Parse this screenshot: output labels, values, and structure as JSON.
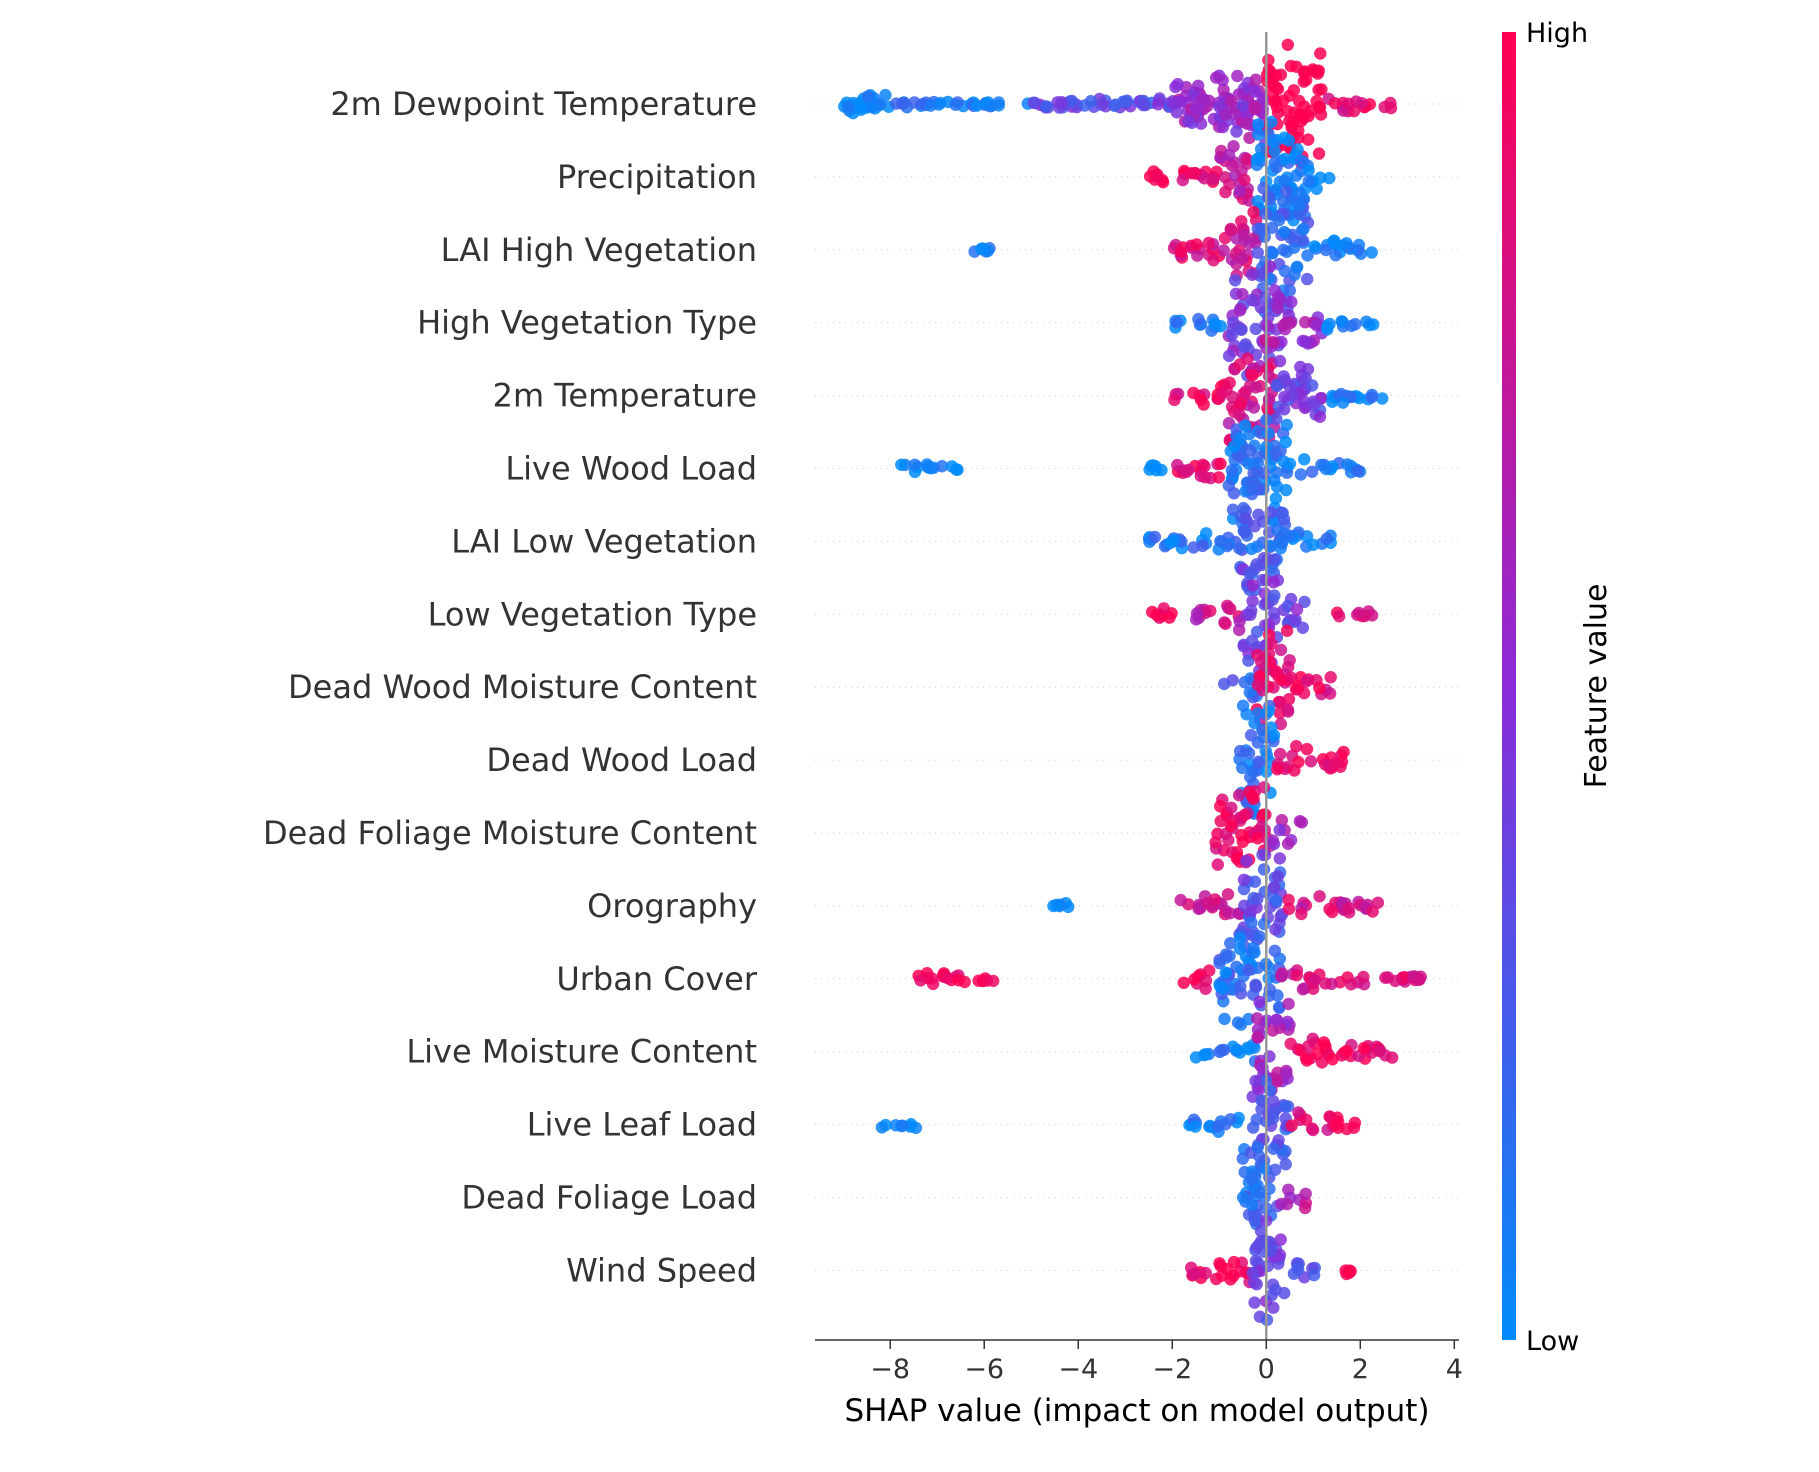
{
  "chart_data": {
    "type": "scatter",
    "subtype": "shap-beeswarm",
    "title": "",
    "xlabel": "SHAP value (impact on model output)",
    "ylabel": "",
    "xlim": [
      -9.6,
      4.1
    ],
    "xticks": [
      -8,
      -6,
      -4,
      -2,
      0,
      2,
      4
    ],
    "xtick_labels": [
      "−8",
      "−6",
      "−4",
      "−2",
      "0",
      "2",
      "4"
    ],
    "zero_line": true,
    "grid": false,
    "colorbar": {
      "title": "Feature value",
      "high_label": "High",
      "low_label": "Low",
      "low_color": "#008bfb",
      "high_color": "#ff0051"
    },
    "features": [
      {
        "name": "2m Dewpoint Temperature",
        "min": -9.1,
        "max": 2.7,
        "peak": 0.6,
        "segments": [
          [
            -9.1,
            -8.0,
            0.0,
            0.9
          ],
          [
            -8.0,
            -5.0,
            0.08,
            0.35
          ],
          [
            -5.0,
            -2.0,
            0.35,
            0.55
          ],
          [
            -2.0,
            0.0,
            0.55,
            1.8
          ],
          [
            0.0,
            1.2,
            1.8,
            2.2
          ],
          [
            1.2,
            2.7,
            0.9,
            0.4
          ]
        ]
      },
      {
        "name": "Precipitation",
        "min": -2.6,
        "max": 1.4,
        "peak": 0.1,
        "segments": [
          [
            -2.6,
            -1.0,
            0.95,
            0.5
          ],
          [
            -1.0,
            -0.3,
            0.75,
            1.3
          ],
          [
            -0.3,
            0.8,
            0.05,
            2.2
          ],
          [
            0.8,
            1.4,
            0.0,
            0.6
          ]
        ]
      },
      {
        "name": "LAI High Vegetation",
        "min": -2.0,
        "max": 2.3,
        "peak": 0.1,
        "segments": [
          [
            -6.5,
            -5.8,
            0.0,
            0.4
          ],
          [
            -2.0,
            -0.8,
            0.85,
            0.6
          ],
          [
            -0.8,
            -0.2,
            0.8,
            1.5
          ],
          [
            -0.2,
            0.9,
            0.2,
            2.2
          ],
          [
            0.9,
            2.3,
            0.0,
            0.5
          ]
        ]
      },
      {
        "name": "High Vegetation Type",
        "min": -2.0,
        "max": 2.3,
        "peak": 0.0,
        "segments": [
          [
            -2.0,
            -0.8,
            0.05,
            0.4
          ],
          [
            -0.8,
            0.3,
            0.45,
            2.0
          ],
          [
            0.3,
            1.2,
            0.55,
            0.9
          ],
          [
            1.2,
            2.3,
            0.1,
            0.4
          ]
        ]
      },
      {
        "name": "2m Temperature",
        "min": -2.0,
        "max": 2.5,
        "peak": 0.0,
        "segments": [
          [
            -2.0,
            -0.8,
            0.9,
            0.5
          ],
          [
            -0.8,
            0.2,
            0.8,
            2.0
          ],
          [
            0.2,
            1.2,
            0.4,
            1.4
          ],
          [
            1.2,
            2.5,
            0.05,
            0.5
          ]
        ]
      },
      {
        "name": "Live Wood Load",
        "min": -2.1,
        "max": 2.0,
        "peak": 0.0,
        "segments": [
          [
            -7.8,
            -6.5,
            0.0,
            0.4
          ],
          [
            -2.5,
            -2.2,
            0.0,
            0.3
          ],
          [
            -2.0,
            -0.8,
            0.9,
            0.5
          ],
          [
            -0.8,
            0.5,
            0.1,
            2.0
          ],
          [
            0.5,
            2.0,
            0.05,
            0.4
          ]
        ]
      },
      {
        "name": "LAI Low Vegetation",
        "min": -2.6,
        "max": 1.6,
        "peak": 0.0,
        "segments": [
          [
            -2.6,
            -0.6,
            0.1,
            0.5
          ],
          [
            -0.6,
            0.4,
            0.2,
            2.0
          ],
          [
            0.4,
            1.6,
            0.05,
            0.4
          ]
        ]
      },
      {
        "name": "Low Vegetation Type",
        "min": -2.5,
        "max": 2.3,
        "peak": 0.0,
        "segments": [
          [
            -2.5,
            -2.0,
            1.0,
            0.6
          ],
          [
            -1.5,
            -0.5,
            0.75,
            0.6
          ],
          [
            -0.5,
            0.3,
            0.4,
            2.0
          ],
          [
            0.3,
            1.0,
            0.4,
            0.6
          ],
          [
            1.5,
            2.3,
            0.9,
            0.3
          ]
        ]
      },
      {
        "name": "Dead Wood Moisture Content",
        "min": -0.9,
        "max": 1.4,
        "peak": 0.2,
        "segments": [
          [
            -0.9,
            -0.2,
            0.2,
            0.5
          ],
          [
            -0.2,
            0.5,
            0.9,
            2.0
          ],
          [
            0.5,
            1.4,
            0.9,
            0.6
          ]
        ]
      },
      {
        "name": "Dead Wood Load",
        "min": -0.6,
        "max": 1.7,
        "peak": -0.1,
        "segments": [
          [
            -0.6,
            0.2,
            0.1,
            2.0
          ],
          [
            0.2,
            1.7,
            0.95,
            0.6
          ]
        ]
      },
      {
        "name": "Dead Foliage Moisture Content",
        "min": -1.1,
        "max": 0.8,
        "peak": -0.1,
        "segments": [
          [
            -1.1,
            0.1,
            0.9,
            1.6
          ],
          [
            0.1,
            0.8,
            0.55,
            0.5
          ]
        ]
      },
      {
        "name": "Orography",
        "min": -2.0,
        "max": 2.5,
        "peak": -0.1,
        "segments": [
          [
            -4.6,
            -4.2,
            0.0,
            0.3
          ],
          [
            -2.0,
            -0.5,
            0.8,
            0.5
          ],
          [
            -0.5,
            0.4,
            0.3,
            1.8
          ],
          [
            0.4,
            2.5,
            0.8,
            0.5
          ]
        ]
      },
      {
        "name": "Urban Cover",
        "min": -1.8,
        "max": 3.5,
        "peak": -0.1,
        "segments": [
          [
            -7.4,
            -6.4,
            1.0,
            0.6
          ],
          [
            -6.2,
            -5.7,
            1.0,
            0.4
          ],
          [
            -1.8,
            -1.2,
            1.0,
            0.5
          ],
          [
            -1.0,
            0.3,
            0.15,
            1.8
          ],
          [
            0.3,
            3.5,
            0.8,
            0.5
          ]
        ]
      },
      {
        "name": "Live Moisture Content",
        "min": -1.7,
        "max": 2.7,
        "peak": 0.0,
        "segments": [
          [
            -1.7,
            -0.2,
            0.05,
            0.4
          ],
          [
            -0.2,
            0.5,
            0.6,
            1.9
          ],
          [
            0.5,
            2.7,
            0.95,
            0.6
          ]
        ]
      },
      {
        "name": "Live Leaf Load",
        "min": -1.7,
        "max": 1.9,
        "peak": 0.0,
        "segments": [
          [
            -8.2,
            -7.4,
            0.0,
            0.4
          ],
          [
            -1.7,
            -0.3,
            0.05,
            0.4
          ],
          [
            -0.3,
            0.5,
            0.3,
            1.9
          ],
          [
            0.5,
            1.9,
            0.9,
            0.5
          ]
        ]
      },
      {
        "name": "Dead Foliage Load",
        "min": -0.5,
        "max": 0.9,
        "peak": 0.0,
        "segments": [
          [
            -0.5,
            0.3,
            0.2,
            1.9
          ],
          [
            0.3,
            0.9,
            0.7,
            0.5
          ]
        ]
      },
      {
        "name": "Wind Speed",
        "min": -1.6,
        "max": 1.8,
        "peak": 0.0,
        "segments": [
          [
            -1.6,
            -0.3,
            0.95,
            0.6
          ],
          [
            -0.3,
            0.4,
            0.4,
            1.9
          ],
          [
            0.4,
            1.1,
            0.3,
            0.5
          ],
          [
            1.6,
            1.8,
            1.0,
            0.3
          ]
        ]
      }
    ]
  }
}
